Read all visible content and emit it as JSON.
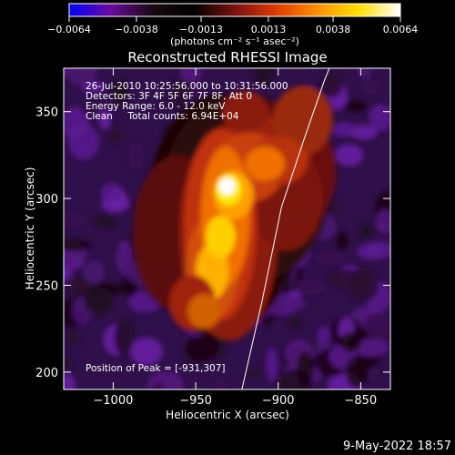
{
  "chart_data": {
    "type": "heatmap",
    "title": "Reconstructed RHESSI Image",
    "xlabel": "Heliocentric X (arcsec)",
    "ylabel": "Heliocentric Y (arcsec)",
    "xlim": [
      -1030,
      -832
    ],
    "ylim": [
      190,
      375
    ],
    "x_ticks": [
      -1000,
      -950,
      -900,
      -850
    ],
    "x_tick_labels": [
      "−1000",
      "−950",
      "−900",
      "−850"
    ],
    "y_ticks": [
      200,
      250,
      300,
      350
    ],
    "y_tick_labels": [
      "200",
      "250",
      "300",
      "350"
    ],
    "colorbar": {
      "min": -0.0064,
      "max": 0.0064,
      "ticks": [
        -0.0064,
        -0.0038,
        -0.0013,
        0.0013,
        0.0038,
        0.0064
      ],
      "tick_labels": [
        "−0.0064",
        "−0.0038",
        "−0.0013",
        "0.0013",
        "0.0038",
        "0.0064"
      ],
      "units_label": "(photons cm⁻² s⁻¹ asec⁻²)",
      "colors": [
        "#0000ff",
        "#6a0aa0",
        "#1a0a10",
        "#000000",
        "#7a1010",
        "#e03a00",
        "#ff9000",
        "#ffe000",
        "#ffffff"
      ]
    },
    "annotations": [
      "26-Jul-2010 10:25:56.000 to 10:31:56.000",
      "Detectors: 3F 4F 5F 6F 7F 8F, Att 0",
      "Energy Range: 6.0 - 12.0 keV",
      "Clean     Total counts: 6.94E+04"
    ],
    "peak_label": "Position of Peak = [-931,307]",
    "peak": [
      -931,
      307
    ],
    "limb_curve": [
      [
        -922,
        190
      ],
      [
        -910,
        240
      ],
      [
        -898,
        295
      ],
      [
        -884,
        335
      ],
      [
        -872,
        368
      ],
      [
        -869,
        375
      ]
    ]
  },
  "footer": {
    "date": "9-May-2022 18:57"
  }
}
